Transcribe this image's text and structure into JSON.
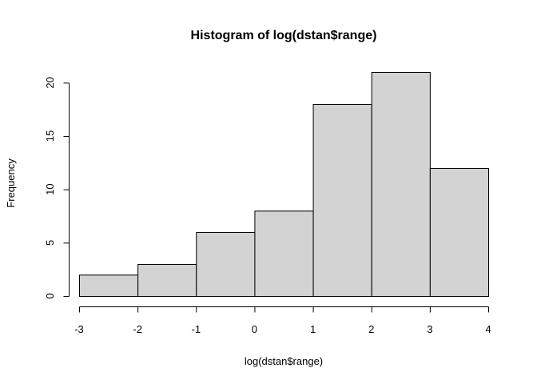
{
  "chart_data": {
    "type": "bar",
    "title": "Histogram of log(dstan$range)",
    "xlabel": "log(dstan$range)",
    "ylabel": "Frequency",
    "bin_edges": [
      -3,
      -2,
      -1,
      0,
      1,
      2,
      3,
      4
    ],
    "values": [
      2,
      3,
      6,
      8,
      18,
      21,
      12
    ],
    "xlim": [
      -3,
      4
    ],
    "ylim": [
      0,
      21
    ],
    "x_ticks": [
      "-3",
      "-2",
      "-1",
      "0",
      "1",
      "2",
      "3",
      "4"
    ],
    "y_ticks": [
      "0",
      "5",
      "10",
      "15",
      "20"
    ],
    "grid": false,
    "bar_fill": "#d3d3d3",
    "bar_stroke": "#000000"
  }
}
